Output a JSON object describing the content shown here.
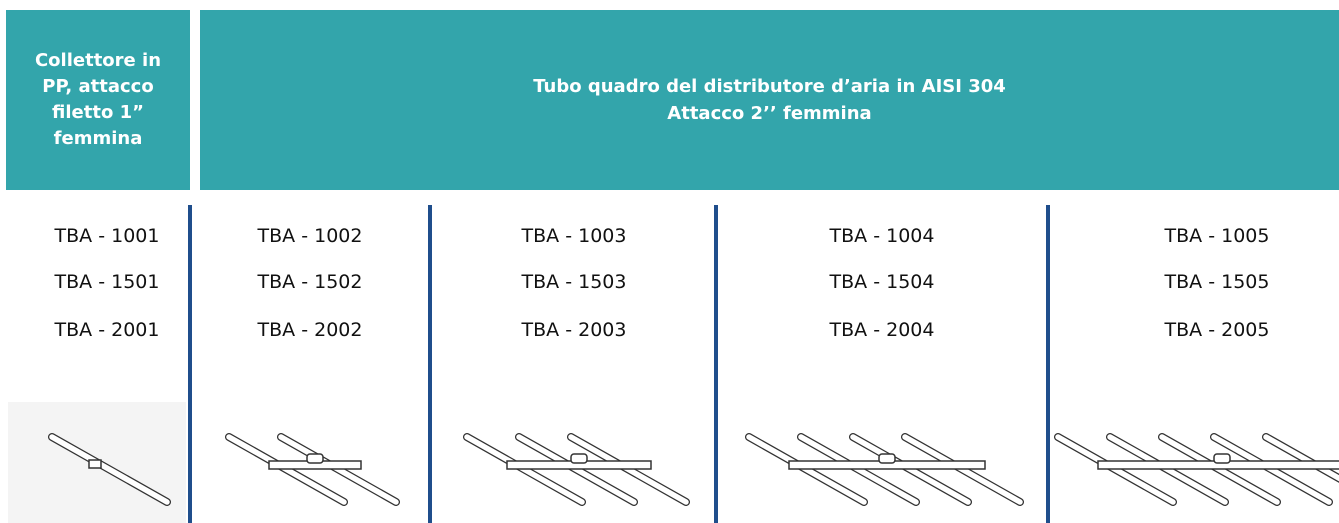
{
  "header": {
    "left": "Collettore in PP, attacco filetto 1” femmina",
    "right": [
      "Tubo quadro del distributore d’aria in AISI 304",
      "Attacco 2’’ femmina"
    ]
  },
  "columns": [
    {
      "codes": [
        "TBA - 1001",
        "TBA - 1501",
        "TBA - 2001"
      ]
    },
    {
      "codes": [
        "TBA - 1002",
        "TBA - 1502",
        "TBA - 2002"
      ]
    },
    {
      "codes": [
        "TBA - 1003",
        "TBA - 1503",
        "TBA - 2003"
      ]
    },
    {
      "codes": [
        "TBA - 1004",
        "TBA - 1504",
        "TBA - 2004"
      ]
    },
    {
      "codes": [
        "TBA - 1005",
        "TBA - 1505",
        "TBA - 2005"
      ]
    }
  ]
}
